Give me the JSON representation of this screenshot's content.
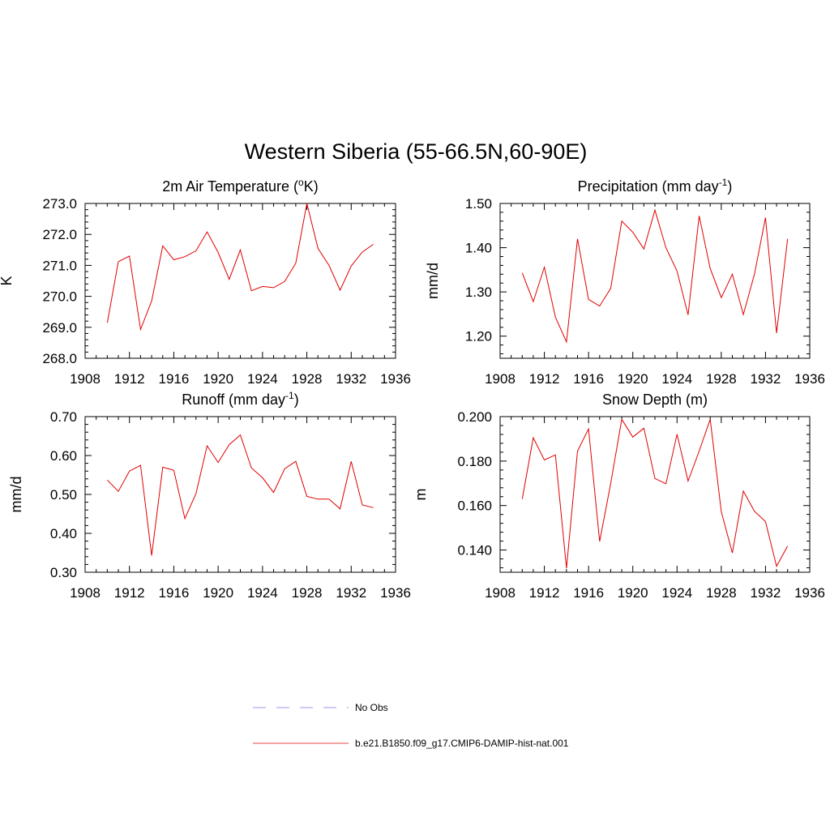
{
  "title": "Western Siberia (55-66.5N,60-90E)",
  "legend": [
    {
      "label": "No Obs",
      "color": "#9999ee",
      "style": "dashed"
    },
    {
      "label": "b.e21.B1850.f09_g17.CMIP6-DAMIP-hist-nat.001",
      "color": "#ee4444",
      "style": "solid"
    }
  ],
  "chart_data": [
    {
      "type": "line",
      "title_main": "2m Air Temperature (",
      "title_sup": "o",
      "title_tail": "K)",
      "ylabel": "K",
      "xlim": [
        1908,
        1936
      ],
      "ylim": [
        268.0,
        273.0
      ],
      "xticks": [
        "1908",
        "1912",
        "1916",
        "1920",
        "1924",
        "1928",
        "1932",
        "1936"
      ],
      "yticks": [
        "268.0",
        "269.0",
        "270.0",
        "271.0",
        "272.0",
        "273.0"
      ],
      "x": [
        1910,
        1911,
        1912,
        1913,
        1914,
        1915,
        1916,
        1917,
        1918,
        1919,
        1920,
        1921,
        1922,
        1923,
        1924,
        1925,
        1926,
        1927,
        1928,
        1929,
        1930,
        1931,
        1932,
        1933,
        1934
      ],
      "values": [
        269.15,
        271.12,
        271.3,
        268.93,
        269.85,
        271.63,
        271.18,
        271.28,
        271.47,
        272.08,
        271.42,
        270.55,
        271.5,
        270.18,
        270.32,
        270.28,
        270.48,
        271.07,
        273.0,
        271.55,
        271.0,
        270.2,
        270.98,
        271.43,
        271.68
      ]
    },
    {
      "type": "line",
      "title_main": "Precipitation (mm day",
      "title_sup": "-1",
      "title_tail": ")",
      "ylabel": "mm/d",
      "xlim": [
        1908,
        1936
      ],
      "ylim": [
        1.15,
        1.5
      ],
      "xticks": [
        "1908",
        "1912",
        "1916",
        "1920",
        "1924",
        "1928",
        "1932",
        "1936"
      ],
      "yticks": [
        "1.20",
        "1.30",
        "1.40",
        "1.50"
      ],
      "x": [
        1910,
        1911,
        1912,
        1913,
        1914,
        1915,
        1916,
        1917,
        1918,
        1919,
        1920,
        1921,
        1922,
        1923,
        1924,
        1925,
        1926,
        1927,
        1928,
        1929,
        1930,
        1931,
        1932,
        1933,
        1934
      ],
      "values": [
        1.343,
        1.278,
        1.356,
        1.243,
        1.187,
        1.42,
        1.283,
        1.268,
        1.308,
        1.46,
        1.435,
        1.397,
        1.485,
        1.4,
        1.347,
        1.248,
        1.472,
        1.353,
        1.287,
        1.34,
        1.249,
        1.34,
        1.468,
        1.207,
        1.42
      ]
    },
    {
      "type": "line",
      "title_main": "Runoff (mm day",
      "title_sup": "-1",
      "title_tail": ")",
      "ylabel": "mm/d",
      "xlim": [
        1908,
        1936
      ],
      "ylim": [
        0.3,
        0.7
      ],
      "xticks": [
        "1908",
        "1912",
        "1916",
        "1920",
        "1924",
        "1928",
        "1932",
        "1936"
      ],
      "yticks": [
        "0.30",
        "0.40",
        "0.50",
        "0.60",
        "0.70"
      ],
      "x": [
        1910,
        1911,
        1912,
        1913,
        1914,
        1915,
        1916,
        1917,
        1918,
        1919,
        1920,
        1921,
        1922,
        1923,
        1924,
        1925,
        1926,
        1927,
        1928,
        1929,
        1930,
        1931,
        1932,
        1933,
        1934
      ],
      "values": [
        0.537,
        0.508,
        0.56,
        0.575,
        0.343,
        0.57,
        0.562,
        0.438,
        0.502,
        0.625,
        0.582,
        0.628,
        0.653,
        0.568,
        0.543,
        0.505,
        0.566,
        0.585,
        0.495,
        0.488,
        0.488,
        0.463,
        0.585,
        0.473,
        0.466
      ]
    },
    {
      "type": "line",
      "title_main": "Snow Depth (m)",
      "title_sup": "",
      "title_tail": "",
      "ylabel": "m",
      "xlim": [
        1908,
        1936
      ],
      "ylim": [
        0.13,
        0.2
      ],
      "xticks": [
        "1908",
        "1912",
        "1916",
        "1920",
        "1924",
        "1928",
        "1932",
        "1936"
      ],
      "yticks": [
        "0.140",
        "0.160",
        "0.180",
        "0.200"
      ],
      "x": [
        1910,
        1911,
        1912,
        1913,
        1914,
        1915,
        1916,
        1917,
        1918,
        1919,
        1920,
        1921,
        1922,
        1923,
        1924,
        1925,
        1926,
        1927,
        1928,
        1929,
        1930,
        1931,
        1932,
        1933,
        1934
      ],
      "values": [
        0.163,
        0.1905,
        0.1805,
        0.1828,
        0.1318,
        0.1845,
        0.1945,
        0.1438,
        0.1698,
        0.1988,
        0.1908,
        0.1948,
        0.1722,
        0.1698,
        0.1921,
        0.171,
        0.1845,
        0.1988,
        0.1572,
        0.1387,
        0.1665,
        0.1574,
        0.1528,
        0.1327,
        0.1418
      ]
    }
  ]
}
